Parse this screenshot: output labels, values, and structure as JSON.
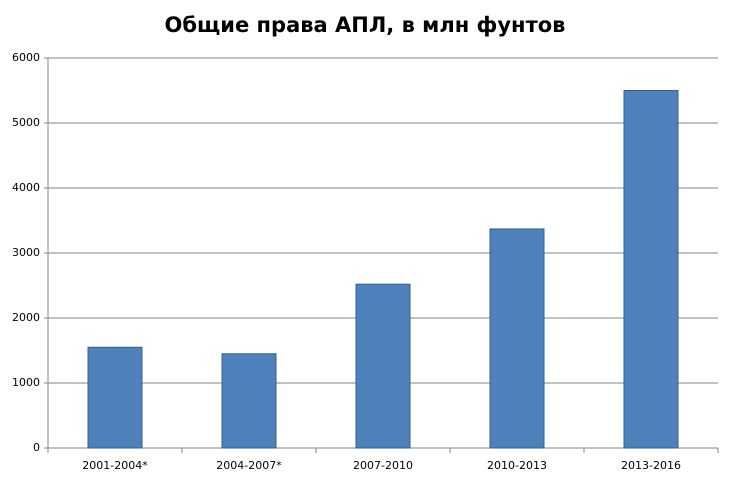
{
  "chart_data": {
    "type": "bar",
    "title": "Общие права АПЛ, в млн фунтов",
    "categories": [
      "2001-2004*",
      "2004-2007*",
      "2007-2010",
      "2010-2013",
      "2013-2016"
    ],
    "values": [
      1550,
      1450,
      2520,
      3370,
      5500
    ],
    "color": "#4f81bd",
    "ylim": [
      0,
      6000
    ],
    "yticks": [
      0,
      1000,
      2000,
      3000,
      4000,
      5000,
      6000
    ],
    "grid": true
  }
}
